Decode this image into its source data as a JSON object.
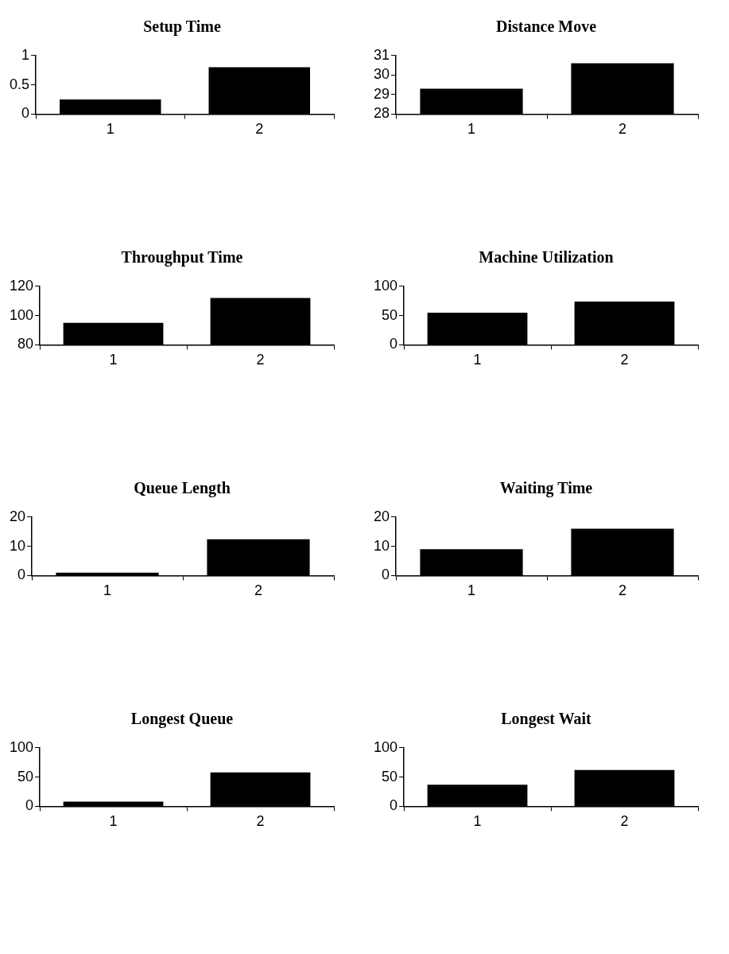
{
  "chart_data": [
    {
      "type": "bar",
      "title": "Setup Time",
      "categories": [
        "1",
        "2"
      ],
      "values": [
        0.25,
        0.8
      ],
      "color": "#000000",
      "ylim": [
        0,
        1
      ],
      "yticks": [
        0,
        0.5,
        1
      ],
      "grid": false,
      "legend": false
    },
    {
      "type": "bar",
      "title": "Distance Move",
      "categories": [
        "1",
        "2"
      ],
      "values": [
        29.3,
        30.6
      ],
      "color": "#000000",
      "ylim": [
        28,
        31
      ],
      "yticks": [
        28,
        29,
        30,
        31
      ],
      "grid": false,
      "legend": false
    },
    {
      "type": "bar",
      "title": "Throughput Time",
      "categories": [
        "1",
        "2"
      ],
      "values": [
        95,
        112
      ],
      "color": "#000000",
      "ylim": [
        80,
        120
      ],
      "yticks": [
        80,
        100,
        120
      ],
      "grid": false,
      "legend": false
    },
    {
      "type": "bar",
      "title": "Machine Utilization",
      "categories": [
        "1",
        "2"
      ],
      "values": [
        55,
        74
      ],
      "color": "#000000",
      "ylim": [
        0,
        100
      ],
      "yticks": [
        0,
        50,
        100
      ],
      "grid": false,
      "legend": false
    },
    {
      "type": "bar",
      "title": "Queue Length",
      "categories": [
        "1",
        "2"
      ],
      "values": [
        1,
        12.4
      ],
      "color": "#000000",
      "ylim": [
        0,
        20
      ],
      "yticks": [
        0,
        10,
        20
      ],
      "grid": false,
      "legend": false
    },
    {
      "type": "bar",
      "title": "Waiting Time",
      "categories": [
        "1",
        "2"
      ],
      "values": [
        9,
        16
      ],
      "color": "#000000",
      "ylim": [
        0,
        20
      ],
      "yticks": [
        0,
        10,
        20
      ],
      "grid": false,
      "legend": false
    },
    {
      "type": "bar",
      "title": "Longest Queue",
      "categories": [
        "1",
        "2"
      ],
      "values": [
        8,
        58
      ],
      "color": "#000000",
      "ylim": [
        0,
        100
      ],
      "yticks": [
        0,
        50,
        100
      ],
      "grid": false,
      "legend": false
    },
    {
      "type": "bar",
      "title": "Longest Wait",
      "categories": [
        "1",
        "2"
      ],
      "values": [
        37,
        62
      ],
      "color": "#000000",
      "ylim": [
        0,
        100
      ],
      "yticks": [
        0,
        50,
        100
      ],
      "grid": false,
      "legend": false
    }
  ]
}
